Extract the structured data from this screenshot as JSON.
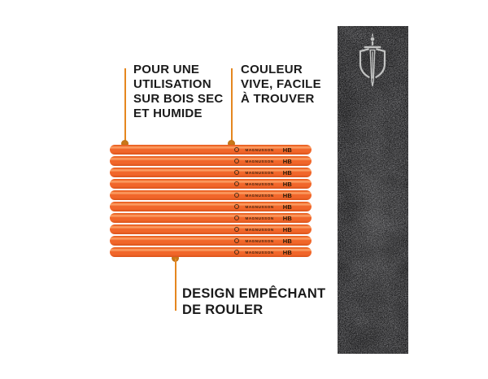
{
  "colors": {
    "background": "#ffffff",
    "accent_line": "#e5871f",
    "accent_dot": "#cc7a1b",
    "pencil_body": "#f1662a",
    "pencil_highlight": "#fb9b60",
    "pencil_shadow": "#d9521a",
    "annotation_text": "#1a1a1a",
    "panel_base": "#232325",
    "logo_stroke": "#c9cac9",
    "pencil_marking": "#30200f"
  },
  "annotations": {
    "top_left": {
      "lines": [
        "POUR UNE",
        "UTILISATION",
        "SUR BOIS SEC",
        "ET HUMIDE"
      ]
    },
    "top_right": {
      "lines": [
        "COULEUR",
        "VIVE, FACILE",
        "À TROUVER"
      ]
    },
    "bottom": {
      "lines": [
        "DESIGN EMPÊCHANT",
        "DE ROULER"
      ]
    }
  },
  "pencils": {
    "count": 10,
    "brand": "MAGNUSSON",
    "grade": "HB"
  },
  "brand_panel": {
    "logo": "magnusson-shield-sword-logo"
  }
}
